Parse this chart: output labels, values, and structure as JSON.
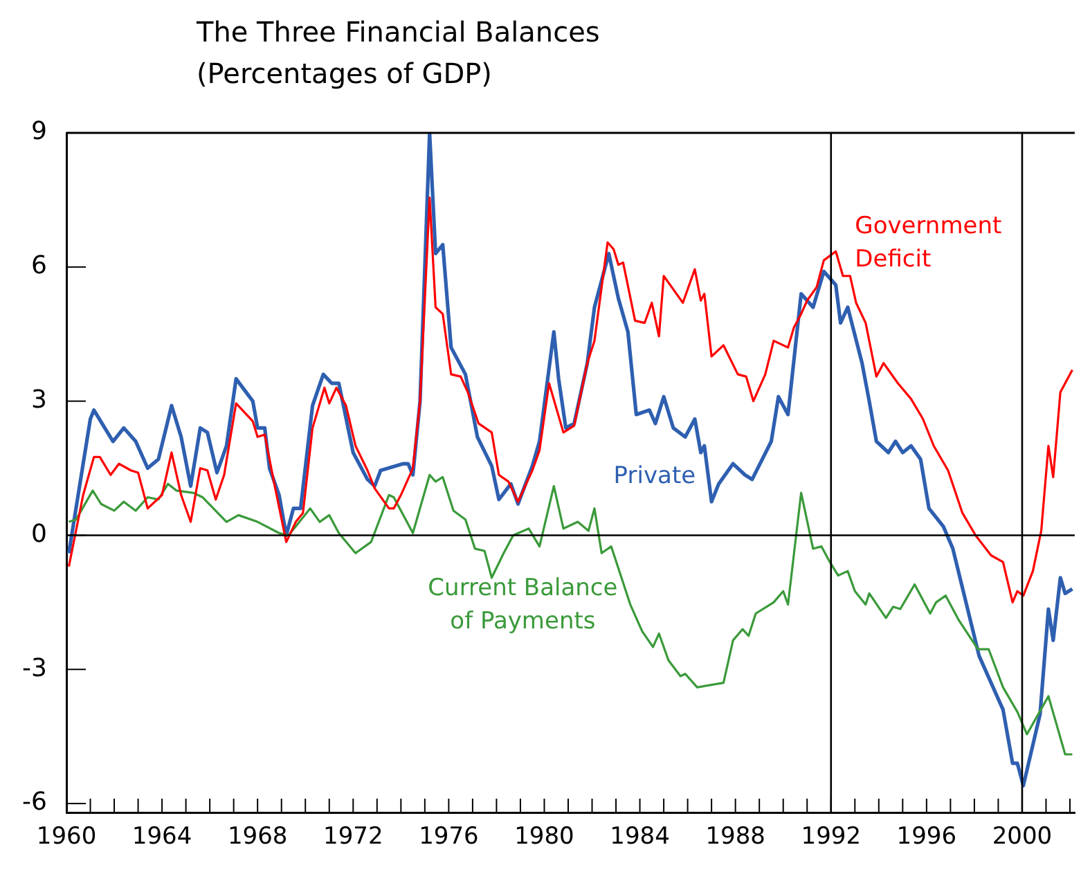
{
  "chart_data": {
    "type": "line",
    "title": "The Three Financial Balances",
    "subtitle": "(Percentages of GDP)",
    "xlim": [
      1960,
      2002.2
    ],
    "xticks": [
      1960,
      {
        "value": 1961,
        "label": null
      },
      {
        "value": 1962,
        "label": null
      },
      {
        "value": 1963,
        "label": null
      },
      1964,
      {
        "value": 1965,
        "label": null
      },
      {
        "value": 1966,
        "label": null
      },
      {
        "value": 1967,
        "label": null
      },
      1968,
      {
        "value": 1969,
        "label": null
      },
      {
        "value": 1970,
        "label": null
      },
      {
        "value": 1971,
        "label": null
      },
      1972,
      {
        "value": 1973,
        "label": null
      },
      {
        "value": 1974,
        "label": null
      },
      {
        "value": 1975,
        "label": null
      },
      1976,
      {
        "value": 1977,
        "label": null
      },
      {
        "value": 1978,
        "label": null
      },
      {
        "value": 1979,
        "label": null
      },
      1980,
      {
        "value": 1981,
        "label": null
      },
      {
        "value": 1982,
        "label": null
      },
      {
        "value": 1983,
        "label": null
      },
      1984,
      {
        "value": 1985,
        "label": null
      },
      {
        "value": 1986,
        "label": null
      },
      {
        "value": 1987,
        "label": null
      },
      1988,
      {
        "value": 1989,
        "label": null
      },
      {
        "value": 1990,
        "label": null
      },
      {
        "value": 1991,
        "label": null
      },
      1992,
      {
        "value": 1993,
        "label": null
      },
      {
        "value": 1994,
        "label": null
      },
      {
        "value": 1995,
        "label": null
      },
      1996,
      {
        "value": 1997,
        "label": null
      },
      {
        "value": 1998,
        "label": null
      },
      {
        "value": 1999,
        "label": null
      },
      2000,
      {
        "value": 2001,
        "label": null
      },
      {
        "value": 2002,
        "label": null
      }
    ],
    "ylim": [
      -6.2,
      9
    ],
    "yticks": [
      -6,
      -3,
      0,
      3,
      6,
      9
    ],
    "grid": false,
    "legend": false,
    "marker": "none",
    "line_style": "solid",
    "ref_lines": [
      {
        "axis": "y",
        "value": 0,
        "color": "#000000"
      },
      {
        "axis": "x",
        "value": 1992,
        "color": "#000000"
      },
      {
        "axis": "x",
        "value": 2000,
        "color": "#000000"
      }
    ],
    "series": [
      {
        "name": "Government Deficit",
        "color": "#ff0000",
        "x": [
          1960.1,
          1960.7,
          1961.15,
          1961.4,
          1961.85,
          1962.2,
          1962.7,
          1963.0,
          1963.4,
          1963.7,
          1964.0,
          1964.4,
          1964.8,
          1965.2,
          1965.6,
          1965.9,
          1966.25,
          1966.6,
          1967.1,
          1967.8,
          1968.0,
          1968.3,
          1968.7,
          1969.2,
          1969.6,
          1969.9,
          1970.3,
          1970.8,
          1971.0,
          1971.3,
          1971.7,
          1972.1,
          1972.6,
          1972.9,
          1973.5,
          1973.7,
          1974.0,
          1974.5,
          1974.8,
          1975.2,
          1975.45,
          1975.75,
          1976.1,
          1976.5,
          1976.8,
          1977.25,
          1977.8,
          1978.1,
          1978.5,
          1978.9,
          1979.5,
          1979.8,
          1980.2,
          1980.8,
          1981.25,
          1981.8,
          1982.1,
          1982.65,
          1982.9,
          1983.1,
          1983.3,
          1983.8,
          1984.2,
          1984.5,
          1984.8,
          1985.0,
          1985.4,
          1985.8,
          1986.3,
          1986.55,
          1986.7,
          1987.0,
          1987.5,
          1988.1,
          1988.45,
          1988.75,
          1989.25,
          1989.6,
          1990.2,
          1990.45,
          1990.75,
          1991.0,
          1991.4,
          1991.7,
          1992.2,
          1992.5,
          1992.8,
          1993.05,
          1993.45,
          1993.9,
          1994.2,
          1994.8,
          1995.35,
          1995.85,
          1996.3,
          1996.9,
          1997.5,
          1998.05,
          1998.7,
          1999.2,
          1999.6,
          1999.8,
          2000.05,
          2000.45,
          2000.8,
          2001.1,
          2001.3,
          2001.6,
          2002.1
        ],
        "values": [
          -0.7,
          0.9,
          1.75,
          1.75,
          1.35,
          1.6,
          1.45,
          1.4,
          0.6,
          0.75,
          0.9,
          1.85,
          0.9,
          0.3,
          1.5,
          1.45,
          0.8,
          1.35,
          2.95,
          2.55,
          2.2,
          2.25,
          1.15,
          -0.15,
          0.3,
          0.5,
          2.4,
          3.3,
          2.95,
          3.3,
          2.9,
          2.0,
          1.45,
          1.05,
          0.6,
          0.6,
          0.9,
          1.5,
          3.0,
          7.55,
          5.1,
          4.95,
          3.6,
          3.55,
          3.2,
          2.5,
          2.3,
          1.35,
          1.2,
          0.75,
          1.45,
          1.9,
          3.4,
          2.3,
          2.45,
          3.85,
          4.35,
          6.55,
          6.4,
          6.05,
          6.1,
          4.8,
          4.75,
          5.2,
          4.45,
          5.8,
          5.5,
          5.2,
          5.95,
          5.25,
          5.4,
          4.0,
          4.25,
          3.6,
          3.55,
          3.0,
          3.6,
          4.35,
          4.2,
          4.65,
          4.95,
          5.25,
          5.55,
          6.15,
          6.35,
          5.8,
          5.8,
          5.2,
          4.75,
          3.55,
          3.85,
          3.4,
          3.05,
          2.6,
          2.0,
          1.45,
          0.5,
          0.0,
          -0.45,
          -0.6,
          -1.5,
          -1.25,
          -1.35,
          -0.8,
          0.1,
          2.0,
          1.3,
          3.2,
          3.7
        ]
      },
      {
        "name": "Private",
        "color": "#2e5fb0",
        "x": [
          1960.1,
          1961.0,
          1961.15,
          1961.95,
          1962.4,
          1962.9,
          1963.4,
          1963.85,
          1964.4,
          1964.8,
          1965.2,
          1965.6,
          1965.9,
          1966.3,
          1966.7,
          1967.1,
          1967.8,
          1968.0,
          1968.3,
          1968.5,
          1968.9,
          1969.2,
          1969.5,
          1969.8,
          1970.3,
          1970.75,
          1971.1,
          1971.4,
          1972.0,
          1972.6,
          1972.9,
          1973.15,
          1974.1,
          1974.3,
          1974.5,
          1974.8,
          1975.2,
          1975.45,
          1975.75,
          1976.1,
          1976.7,
          1977.2,
          1977.8,
          1978.1,
          1978.6,
          1978.9,
          1979.5,
          1979.8,
          1980.4,
          1980.6,
          1980.9,
          1981.25,
          1981.8,
          1982.1,
          1982.7,
          1983.1,
          1983.5,
          1983.85,
          1984.4,
          1984.65,
          1985.0,
          1985.4,
          1985.9,
          1986.3,
          1986.55,
          1986.7,
          1987.0,
          1987.3,
          1987.9,
          1988.4,
          1988.7,
          1989.5,
          1989.8,
          1990.2,
          1990.75,
          1991.25,
          1991.7,
          1992.2,
          1992.4,
          1992.7,
          1993.3,
          1993.6,
          1993.9,
          1994.4,
          1994.7,
          1995.0,
          1995.35,
          1995.75,
          1996.1,
          1996.7,
          1997.1,
          1998.2,
          1999.2,
          1999.6,
          1999.8,
          2000.05,
          2000.75,
          2001.1,
          2001.3,
          2001.6,
          2001.8,
          2002.1
        ],
        "values": [
          -0.4,
          2.6,
          2.8,
          2.1,
          2.4,
          2.1,
          1.5,
          1.7,
          2.9,
          2.2,
          1.1,
          2.4,
          2.3,
          1.4,
          2.0,
          3.5,
          3.0,
          2.4,
          2.4,
          1.5,
          0.9,
          0.0,
          0.6,
          0.6,
          2.9,
          3.6,
          3.4,
          3.4,
          1.85,
          1.25,
          1.1,
          1.45,
          1.6,
          1.6,
          1.35,
          3.0,
          9.0,
          6.3,
          6.5,
          4.2,
          3.6,
          2.2,
          1.55,
          0.8,
          1.15,
          0.7,
          1.55,
          2.1,
          4.55,
          3.5,
          2.4,
          2.5,
          3.85,
          5.1,
          6.3,
          5.3,
          4.55,
          2.7,
          2.8,
          2.5,
          3.1,
          2.4,
          2.2,
          2.6,
          1.85,
          2.0,
          0.75,
          1.15,
          1.6,
          1.35,
          1.25,
          2.1,
          3.1,
          2.7,
          5.4,
          5.1,
          5.9,
          5.6,
          4.75,
          5.1,
          3.85,
          3.0,
          2.1,
          1.85,
          2.1,
          1.85,
          2.0,
          1.7,
          0.6,
          0.2,
          -0.3,
          -2.7,
          -3.9,
          -5.1,
          -5.1,
          -5.6,
          -4.0,
          -1.65,
          -2.35,
          -0.95,
          -1.3,
          -1.2
        ]
      },
      {
        "name": "Current Balance of Payments",
        "color": "#3a9a3a",
        "x": [
          1960.1,
          1960.4,
          1961.1,
          1961.45,
          1962.0,
          1962.4,
          1962.9,
          1963.4,
          1963.85,
          1964.25,
          1964.6,
          1965.3,
          1965.7,
          1966.7,
          1967.2,
          1968.0,
          1968.9,
          1969.3,
          1970.2,
          1970.6,
          1971.0,
          1971.4,
          1972.1,
          1972.75,
          1973.5,
          1973.7,
          1974.5,
          1975.2,
          1975.45,
          1975.75,
          1976.2,
          1976.7,
          1977.1,
          1977.5,
          1977.8,
          1978.3,
          1978.7,
          1979.35,
          1979.8,
          1980.4,
          1980.8,
          1981.4,
          1981.85,
          1982.1,
          1982.4,
          1982.8,
          1983.6,
          1984.1,
          1984.55,
          1984.8,
          1985.2,
          1985.7,
          1985.9,
          1986.4,
          1987.5,
          1987.9,
          1988.3,
          1988.55,
          1988.85,
          1989.6,
          1990.0,
          1990.2,
          1990.75,
          1991.25,
          1991.6,
          1991.9,
          1992.3,
          1992.7,
          1993.0,
          1993.45,
          1993.6,
          1994.3,
          1994.6,
          1994.9,
          1995.5,
          1996.15,
          1996.4,
          1996.8,
          1997.35,
          1998.15,
          1998.6,
          1999.2,
          1999.8,
          2000.2,
          2001.1,
          2001.8,
          2002.1
        ],
        "values": [
          0.3,
          0.35,
          1.0,
          0.7,
          0.55,
          0.75,
          0.55,
          0.85,
          0.8,
          1.15,
          1.0,
          0.95,
          0.85,
          0.3,
          0.45,
          0.3,
          0.05,
          0.0,
          0.6,
          0.3,
          0.45,
          0.05,
          -0.4,
          -0.15,
          0.9,
          0.85,
          0.05,
          1.35,
          1.2,
          1.3,
          0.55,
          0.35,
          -0.3,
          -0.35,
          -0.95,
          -0.4,
          0.0,
          0.15,
          -0.25,
          1.1,
          0.15,
          0.3,
          0.1,
          0.6,
          -0.4,
          -0.25,
          -1.55,
          -2.15,
          -2.5,
          -2.2,
          -2.8,
          -3.15,
          -3.1,
          -3.4,
          -3.3,
          -2.35,
          -2.1,
          -2.25,
          -1.75,
          -1.5,
          -1.25,
          -1.55,
          0.95,
          -0.3,
          -0.25,
          -0.55,
          -0.9,
          -0.8,
          -1.25,
          -1.55,
          -1.3,
          -1.85,
          -1.6,
          -1.65,
          -1.1,
          -1.75,
          -1.5,
          -1.35,
          -1.9,
          -2.55,
          -2.55,
          -3.4,
          -3.95,
          -4.45,
          -3.6,
          -4.9,
          -4.9
        ]
      }
    ]
  }
}
